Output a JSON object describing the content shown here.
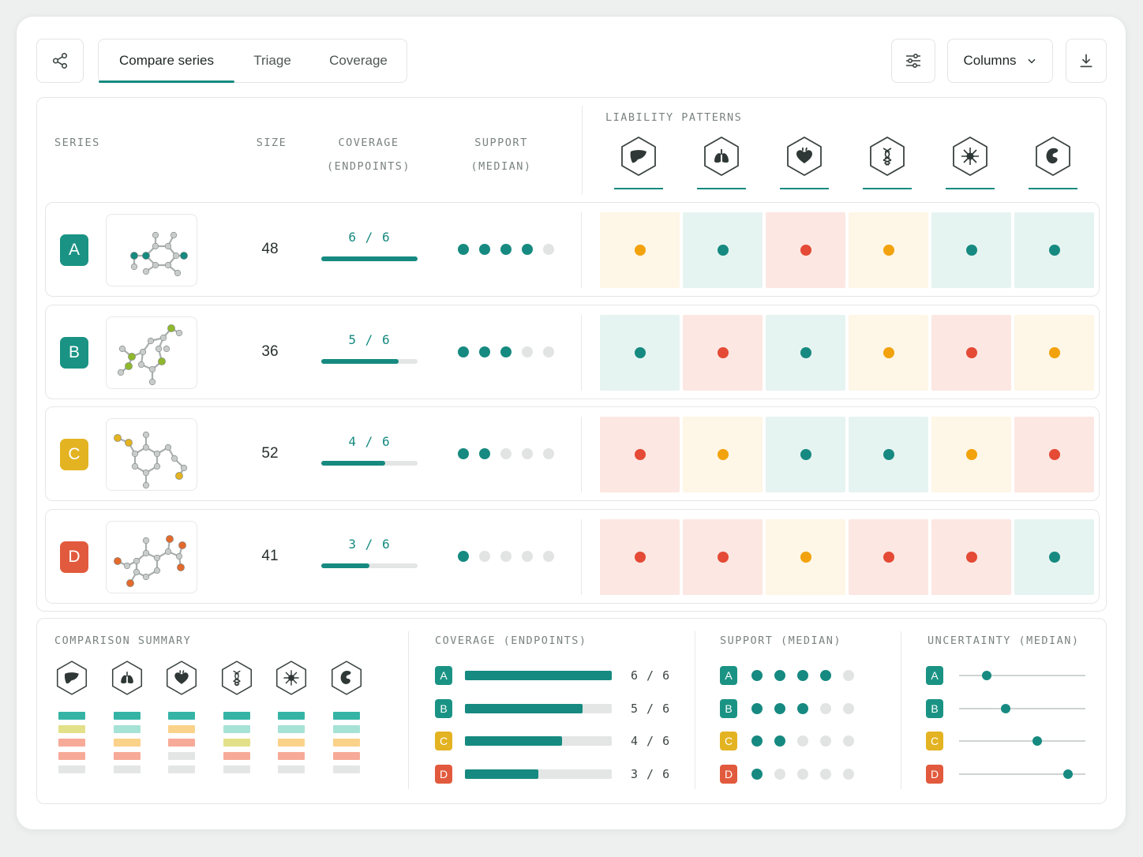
{
  "toolbar": {
    "tabs": [
      {
        "label": "Compare series",
        "active": true
      },
      {
        "label": "Triage",
        "active": false
      },
      {
        "label": "Coverage",
        "active": false
      }
    ],
    "columns_label": "Columns",
    "icons": [
      "share-icon",
      "sliders-icon",
      "chevron-down-icon",
      "download-icon"
    ]
  },
  "table": {
    "headers": {
      "series": "SERIES",
      "size": "SIZE",
      "coverage_1": "COVERAGE",
      "coverage_2": "(ENDPOINTS)",
      "support_1": "SUPPORT",
      "support_2": "(MEDIAN)",
      "liability": "LIABILITY PATTERNS"
    },
    "organs": [
      "liver",
      "lungs",
      "heart",
      "dna",
      "immune",
      "kidney"
    ],
    "rows": [
      {
        "id": "A",
        "color": "#1a9384",
        "size": "48",
        "coverage": "6 / 6",
        "coverage_frac": 1.0,
        "support": 4,
        "cells": [
          "amber",
          "teal",
          "red",
          "amber",
          "teal",
          "teal"
        ]
      },
      {
        "id": "B",
        "color": "#1a9384",
        "size": "36",
        "coverage": "5 / 6",
        "coverage_frac": 0.8,
        "support": 3,
        "cells": [
          "teal",
          "red",
          "teal",
          "amber",
          "red",
          "amber"
        ]
      },
      {
        "id": "C",
        "color": "#e3b322",
        "size": "52",
        "coverage": "4 / 6",
        "coverage_frac": 0.66,
        "support": 2,
        "cells": [
          "red",
          "amber",
          "teal",
          "teal",
          "amber",
          "red"
        ]
      },
      {
        "id": "D",
        "color": "#e25a3d",
        "size": "41",
        "coverage": "3 / 6",
        "coverage_frac": 0.5,
        "support": 1,
        "cells": [
          "red",
          "red",
          "amber",
          "red",
          "red",
          "teal"
        ]
      }
    ]
  },
  "palette": {
    "teal": {
      "bg": "#e6f4f1",
      "dot": "#168a80"
    },
    "amber": {
      "bg": "#fef6e6",
      "dot": "#f2a20c"
    },
    "red": {
      "bg": "#fce7e2",
      "dot": "#e44a35"
    }
  },
  "summary": {
    "title": "COMPARISON SUMMARY",
    "coverage_title": "COVERAGE (ENDPOINTS)",
    "support_title": "SUPPORT (MEDIAN)",
    "uncertainty_title": "UNCERTAINTY (MEDIAN)",
    "stacks": [
      [
        "#35b4a6",
        "#e3e08a",
        "#f7aa98",
        "#f7aa98",
        "#e3e6e5"
      ],
      [
        "#35b4a6",
        "#a6e2d6",
        "#fbd28a",
        "#f7aa98",
        "#e3e6e5"
      ],
      [
        "#35b4a6",
        "#fbd28a",
        "#f7aa98",
        "#e3e6e5",
        "#e3e6e5"
      ],
      [
        "#35b4a6",
        "#a6e2d6",
        "#e3e08a",
        "#f7aa98",
        "#e3e6e5"
      ],
      [
        "#35b4a6",
        "#a6e2d6",
        "#fbd28a",
        "#f7aa98",
        "#e3e6e5"
      ],
      [
        "#35b4a6",
        "#a6e2d6",
        "#fbd28a",
        "#f7aa98",
        "#e3e6e5"
      ]
    ],
    "uncertainty": [
      0.22,
      0.37,
      0.62,
      0.86
    ]
  }
}
